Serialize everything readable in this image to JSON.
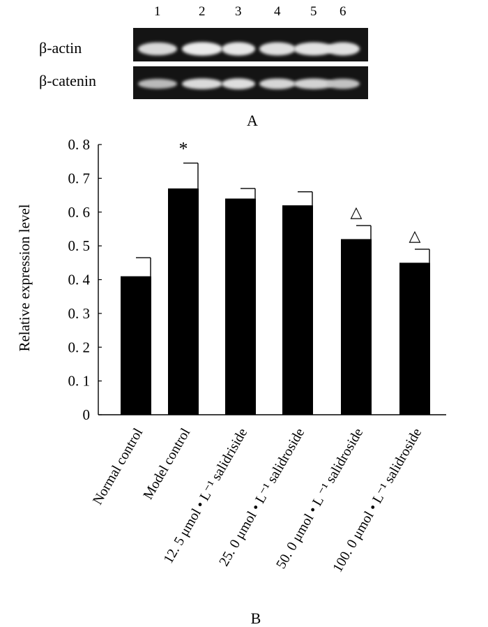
{
  "blot": {
    "lanes": [
      "1",
      "2",
      "3",
      "4",
      "5",
      "6"
    ],
    "rows": [
      {
        "label": "β-actin",
        "intensity": [
          0.8,
          0.95,
          0.92,
          0.86,
          0.88,
          0.87
        ]
      },
      {
        "label": "β-catenin",
        "intensity": [
          0.55,
          0.82,
          0.85,
          0.78,
          0.76,
          0.62
        ]
      }
    ],
    "panel_label": "A"
  },
  "chart_data": {
    "type": "bar",
    "panel_label": "B",
    "ylabel": "Relative expression level",
    "xlabel": "",
    "ylim": [
      0,
      0.8
    ],
    "yticks": [
      0,
      0.1,
      0.2,
      0.3,
      0.4,
      0.5,
      0.6,
      0.7,
      0.8
    ],
    "ytick_labels": [
      "0",
      "0. 1",
      "0. 2",
      "0. 3",
      "0. 4",
      "0. 5",
      "0. 6",
      "0. 7",
      "0. 8"
    ],
    "categories": [
      "Normal  control",
      "Model  control",
      "12. 5 μmol • L⁻¹  salidriside",
      "25. 0 μmol • L⁻¹ salidroside",
      "50. 0 μmol • L ⁻¹ salidroside",
      "100. 0 μmol • L⁻¹ salidroside"
    ],
    "values": [
      0.41,
      0.67,
      0.64,
      0.62,
      0.52,
      0.45
    ],
    "errors": [
      0.055,
      0.075,
      0.03,
      0.04,
      0.04,
      0.04
    ],
    "annotations": [
      "",
      "*",
      "",
      "",
      "△",
      "△"
    ],
    "bar_color": "#000000"
  }
}
